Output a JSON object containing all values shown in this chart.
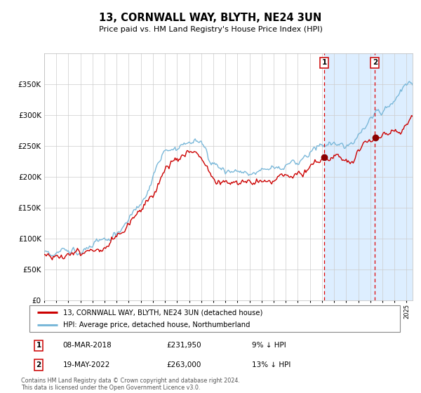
{
  "title": "13, CORNWALL WAY, BLYTH, NE24 3UN",
  "subtitle": "Price paid vs. HM Land Registry's House Price Index (HPI)",
  "legend_line1": "13, CORNWALL WAY, BLYTH, NE24 3UN (detached house)",
  "legend_line2": "HPI: Average price, detached house, Northumberland",
  "footnote": "Contains HM Land Registry data © Crown copyright and database right 2024.\nThis data is licensed under the Open Government Licence v3.0.",
  "table": [
    {
      "num": "1",
      "date": "08-MAR-2018",
      "price": "£231,950",
      "note": "9% ↓ HPI"
    },
    {
      "num": "2",
      "date": "19-MAY-2022",
      "price": "£263,000",
      "note": "13% ↓ HPI"
    }
  ],
  "sale1_year": 2018.19,
  "sale1_price": 231950,
  "sale2_year": 2022.38,
  "sale2_price": 263000,
  "hpi_color": "#7ab8d9",
  "price_color": "#cc0000",
  "marker_color": "#8b0000",
  "dashed_color": "#dd0000",
  "shade_color": "#ddeeff",
  "ylim_max": 400000,
  "yticks": [
    0,
    50000,
    100000,
    150000,
    200000,
    250000,
    300000,
    350000
  ],
  "xlim_start": 1995.0,
  "xlim_end": 2025.5
}
